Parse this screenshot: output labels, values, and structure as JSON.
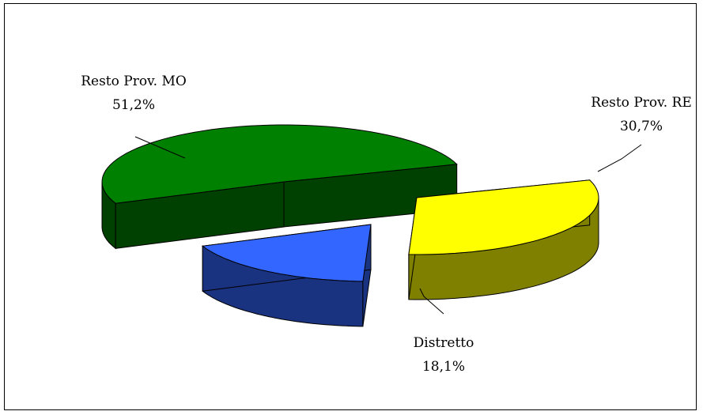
{
  "chart_data": {
    "type": "pie",
    "style": "3d-exploded",
    "title": "",
    "categories": [
      "Resto Prov. MO",
      "Resto Prov. RE",
      "Distretto"
    ],
    "values": [
      51.2,
      30.7,
      18.1
    ],
    "value_labels": [
      "51,2%",
      "30,7%",
      "18,1%"
    ],
    "unit": "%",
    "colors": {
      "Resto Prov. MO": {
        "top": "#008000",
        "side": "#004000"
      },
      "Resto Prov. RE": {
        "top": "#ffff00",
        "side": "#808000"
      },
      "Distretto": {
        "top": "#3366ff",
        "side": "#1a3380"
      }
    },
    "legend": "none",
    "grid": false
  }
}
